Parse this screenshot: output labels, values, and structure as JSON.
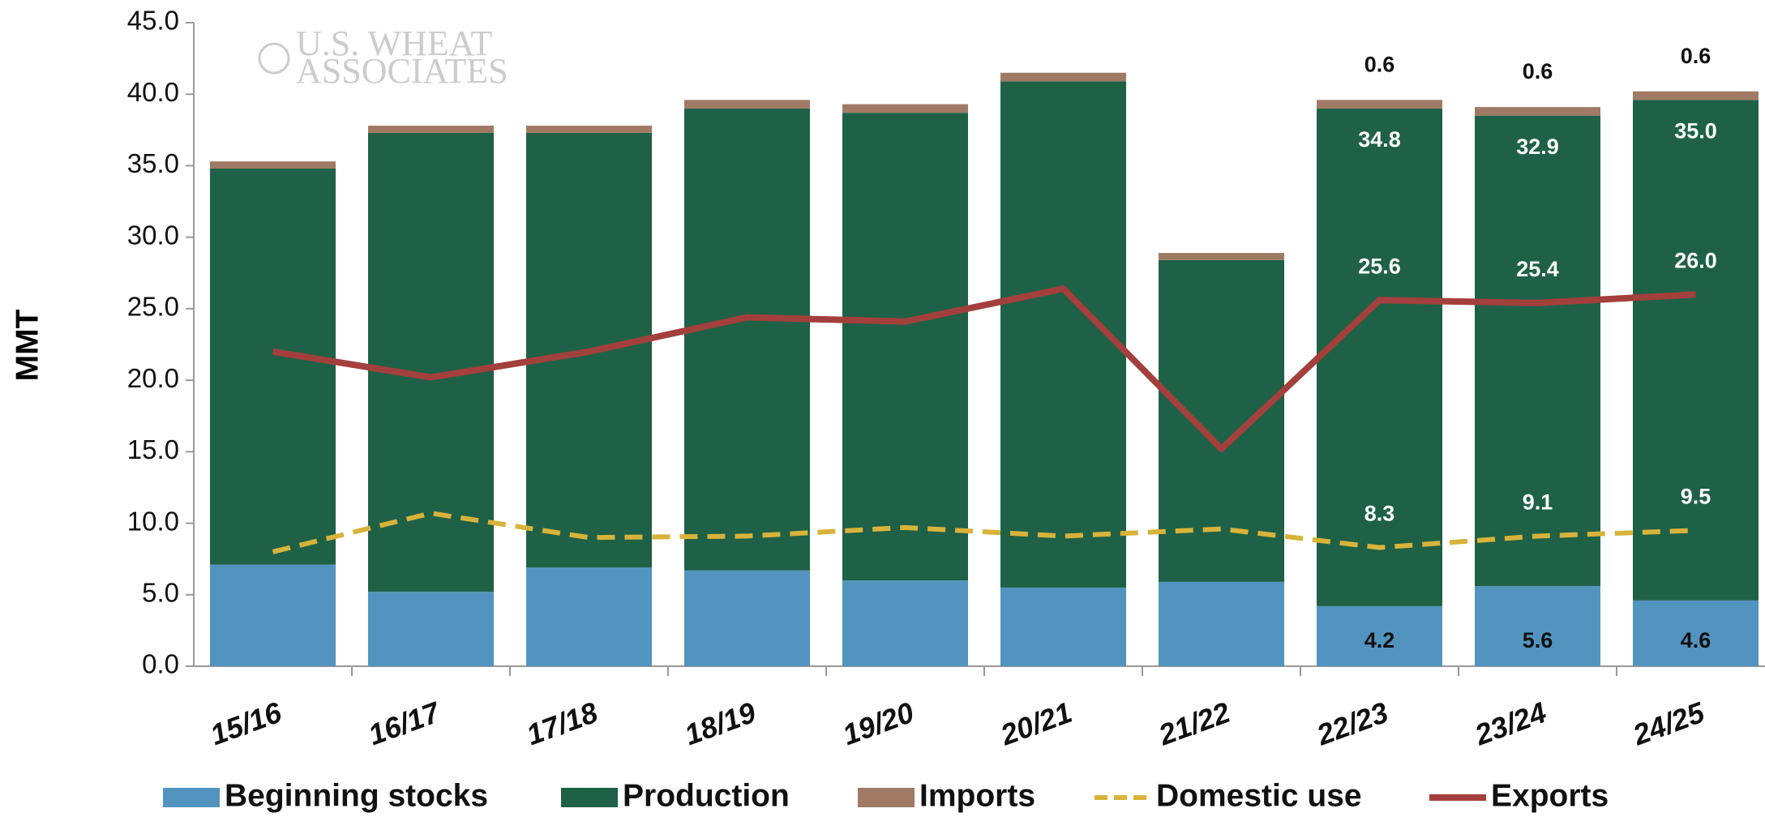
{
  "chart_data": {
    "type": "stacked_bar_line",
    "watermark": [
      "U.S. WHEAT",
      "ASSOCIATES"
    ],
    "y_label": "MMT",
    "categories": [
      "15/16",
      "16/17",
      "17/18",
      "18/19",
      "19/20",
      "20/21",
      "21/22",
      "22/23",
      "23/24",
      "24/25"
    ],
    "ylim": [
      0,
      45
    ],
    "yticks": [
      {
        "value": 0,
        "label": "0.0"
      },
      {
        "value": 5,
        "label": "5.0"
      },
      {
        "value": 10,
        "label": "10.0"
      },
      {
        "value": 15,
        "label": "15.0"
      },
      {
        "value": 20,
        "label": "20.0"
      },
      {
        "value": 25,
        "label": "25.0"
      },
      {
        "value": 30,
        "label": "30.0"
      },
      {
        "value": 35,
        "label": "35.0"
      },
      {
        "value": 40,
        "label": "40.0"
      },
      {
        "value": 45,
        "label": "45.0"
      }
    ],
    "series": [
      {
        "name": "Beginning stocks",
        "kind": "bar",
        "color": "#5294bf",
        "values": [
          7.1,
          5.2,
          6.9,
          6.7,
          6.0,
          5.5,
          5.9,
          4.2,
          5.6,
          4.6
        ],
        "value_labels": [
          null,
          null,
          null,
          null,
          null,
          null,
          null,
          "4.2",
          "5.6",
          "4.6"
        ]
      },
      {
        "name": "Production",
        "kind": "bar",
        "color": "#1f6146",
        "values": [
          27.7,
          32.1,
          30.4,
          32.3,
          32.7,
          35.4,
          22.5,
          34.8,
          32.9,
          35.0
        ],
        "value_labels": [
          null,
          null,
          null,
          null,
          null,
          null,
          null,
          "34.8",
          "32.9",
          "35.0"
        ]
      },
      {
        "name": "Imports",
        "kind": "bar",
        "color": "#a07a64",
        "values": [
          0.5,
          0.5,
          0.5,
          0.6,
          0.6,
          0.6,
          0.5,
          0.6,
          0.6,
          0.6
        ],
        "value_labels": [
          null,
          null,
          null,
          null,
          null,
          null,
          null,
          "0.6",
          "0.6",
          "0.6"
        ]
      },
      {
        "name": "Domestic use",
        "kind": "dashed_line",
        "color": "#d8b33a",
        "values": [
          8.0,
          10.7,
          9.0,
          9.1,
          9.7,
          9.1,
          9.6,
          8.3,
          9.1,
          9.5
        ],
        "value_labels": [
          null,
          null,
          null,
          null,
          null,
          null,
          null,
          "8.3",
          "9.1",
          "9.5"
        ]
      },
      {
        "name": "Exports",
        "kind": "line",
        "color": "#a33f3c",
        "values": [
          22.0,
          20.2,
          22.0,
          24.4,
          24.1,
          26.4,
          15.2,
          25.6,
          25.4,
          26.0
        ],
        "value_labels": [
          null,
          null,
          null,
          null,
          null,
          null,
          null,
          "25.6",
          "25.4",
          "26.0"
        ]
      }
    ]
  }
}
